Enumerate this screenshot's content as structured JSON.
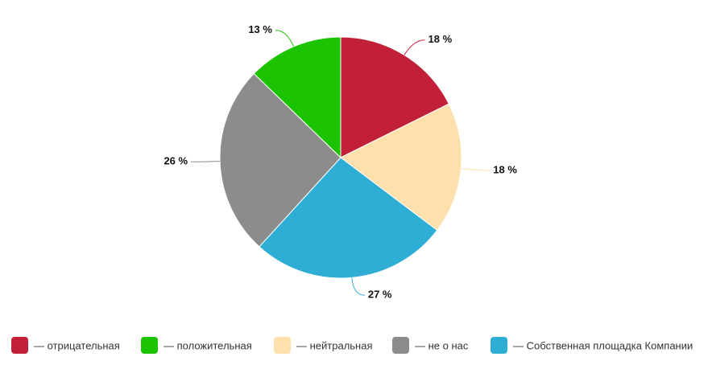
{
  "chart_data": {
    "type": "pie",
    "categories": [
      "— отрицательная",
      "— нейтральная",
      "— Собственная площадка Компании",
      "— не о нас",
      "— положительная"
    ],
    "values": [
      18,
      18,
      27,
      26,
      13
    ],
    "value_labels": [
      "18 %",
      "18 %",
      "27 %",
      "26 %",
      "13 %"
    ],
    "colors": [
      "#c21f39",
      "#fde0ab",
      "#2eaed5",
      "#8c8c8c",
      "#1cc300"
    ]
  }
}
